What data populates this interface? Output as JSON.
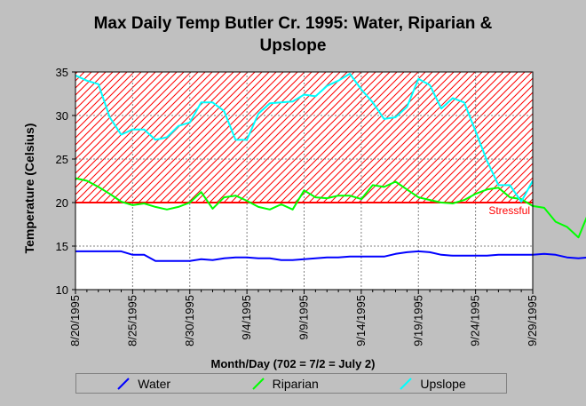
{
  "chart_data": {
    "type": "line",
    "title_line1": "Max Daily Temp Butler Cr. 1995: Water, Riparian &",
    "title_line2": "Upslope",
    "xlabel": "Month/Day (702 = 7/2 = July 2)",
    "ylabel": "Temperature (Celsius)",
    "ylim": [
      10,
      35
    ],
    "yticks": [
      10,
      15,
      20,
      25,
      30,
      35
    ],
    "x_start": "8/20/1995",
    "xtick_labels": [
      "8/20/1995",
      "8/25/1995",
      "8/30/1995",
      "9/4/1995",
      "9/9/1995",
      "9/14/1995",
      "9/19/1995",
      "9/24/1995",
      "9/29/1995"
    ],
    "grid": true,
    "threshold": {
      "value": 20,
      "label": "Stressful",
      "color": "#ff0000"
    },
    "series": [
      {
        "name": "Water",
        "color": "#0000ff",
        "values": [
          14.4,
          14.4,
          14.4,
          14.4,
          14.4,
          14.0,
          14.0,
          13.3,
          13.3,
          13.3,
          13.3,
          13.5,
          13.4,
          13.6,
          13.7,
          13.7,
          13.6,
          13.6,
          13.4,
          13.4,
          13.5,
          13.6,
          13.7,
          13.7,
          13.8,
          13.8,
          13.8,
          13.8,
          14.1,
          14.3,
          14.4,
          14.3,
          14.0,
          13.9,
          13.9,
          13.9,
          13.9,
          14.0,
          14.0,
          14.0,
          14.0,
          14.1,
          14.0,
          13.7,
          13.6,
          13.7,
          13.5
        ]
      },
      {
        "name": "Riparian",
        "color": "#00ff00",
        "values": [
          22.8,
          22.5,
          21.8,
          21.0,
          20.1,
          19.7,
          19.9,
          19.5,
          19.2,
          19.5,
          20.0,
          21.2,
          19.3,
          20.6,
          20.8,
          20.2,
          19.5,
          19.2,
          19.8,
          19.2,
          21.4,
          20.6,
          20.5,
          20.8,
          20.8,
          20.4,
          22.0,
          21.8,
          22.4,
          21.5,
          20.6,
          20.3,
          20.0,
          19.9,
          20.3,
          21.0,
          21.5,
          21.7,
          20.6,
          20.4,
          19.6,
          19.4,
          17.8,
          17.2,
          16.0,
          19.2,
          18.3
        ]
      },
      {
        "name": "Upslope",
        "color": "#00ffff",
        "values": [
          34.6,
          34.0,
          33.6,
          29.8,
          27.8,
          28.4,
          28.4,
          27.2,
          27.5,
          28.8,
          29.2,
          31.5,
          31.5,
          30.5,
          27.2,
          27.2,
          30.2,
          31.4,
          31.5,
          31.6,
          32.4,
          32.2,
          33.4,
          34.0,
          34.8,
          33.0,
          31.5,
          29.6,
          29.8,
          31.0,
          34.2,
          33.5,
          30.8,
          32.0,
          31.5,
          28.2,
          24.8,
          22.0,
          22.0,
          20.1,
          22.5
        ]
      }
    ]
  }
}
